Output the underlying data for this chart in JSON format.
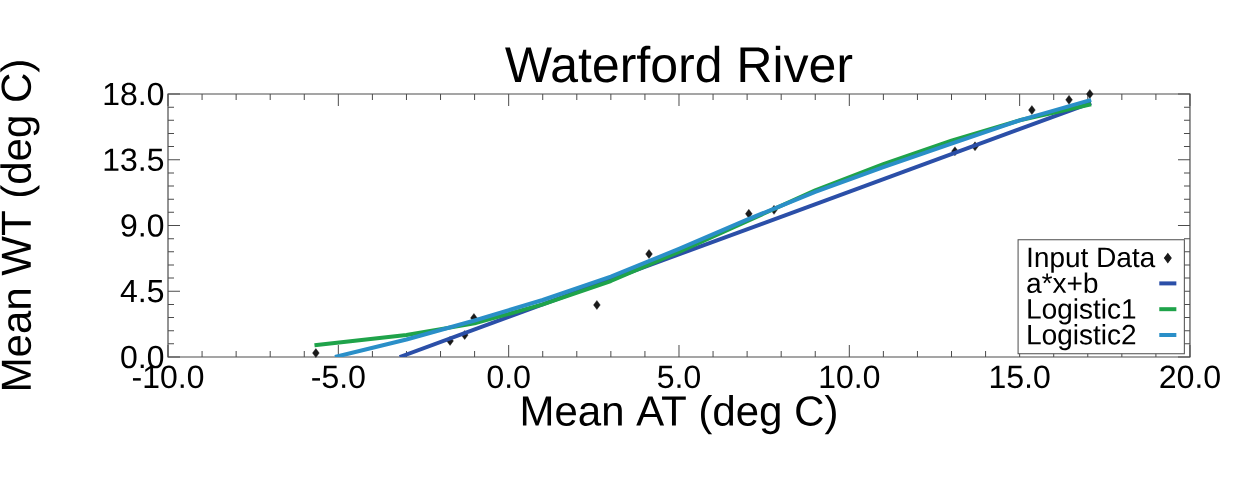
{
  "chart_data": {
    "type": "line",
    "title": "Waterford River",
    "xlabel": "Mean AT (deg C)",
    "ylabel": "Mean WT (deg C)",
    "xlim": [
      -10,
      20
    ],
    "ylim": [
      0,
      18
    ],
    "xticks": [
      {
        "value": -10,
        "label": "-10.0"
      },
      {
        "value": -5,
        "label": "-5.0"
      },
      {
        "value": 0,
        "label": "0.0"
      },
      {
        "value": 5,
        "label": "5.0"
      },
      {
        "value": 10,
        "label": "10.0"
      },
      {
        "value": 15,
        "label": "15.0"
      },
      {
        "value": 20,
        "label": "20.0"
      }
    ],
    "yticks": [
      {
        "value": 0,
        "label": "0.0"
      },
      {
        "value": 4.5,
        "label": "4.5"
      },
      {
        "value": 9,
        "label": "9.0"
      },
      {
        "value": 13.5,
        "label": "13.5"
      },
      {
        "value": 18,
        "label": "18.0"
      }
    ],
    "grid": false,
    "legend": "bottom right",
    "series": [
      {
        "name": "Input Data",
        "type": "scatter",
        "marker": "diamond",
        "color": "#1a1a1a",
        "x": [
          -5.66,
          -1.72,
          -1.29,
          -1.02,
          2.59,
          4.12,
          7.05,
          7.79,
          13.1,
          13.69,
          15.36,
          16.45,
          17.06
        ],
        "values": [
          0.27,
          1.1,
          1.5,
          2.67,
          3.56,
          7.05,
          9.8,
          10.07,
          14.08,
          14.42,
          16.9,
          17.6,
          18.0
        ]
      },
      {
        "name": "a*x+b",
        "type": "line",
        "color": "#2b4fa8",
        "x": [
          -3.2,
          17.1
        ],
        "values": [
          0,
          17.4
        ]
      },
      {
        "name": "Logistic1",
        "type": "line",
        "color": "#1fa34a",
        "x": [
          -5.7,
          -3,
          -1,
          1,
          3,
          5,
          7,
          9,
          11,
          13,
          15,
          17.1
        ],
        "values": [
          0.8,
          1.5,
          2.3,
          3.6,
          5.2,
          7.2,
          9.3,
          11.4,
          13.2,
          14.8,
          16.2,
          17.3
        ]
      },
      {
        "name": "Logistic2",
        "type": "line",
        "color": "#2a8fc8",
        "x": [
          -5.1,
          -3,
          -1,
          1,
          3,
          5,
          7,
          9,
          11,
          13,
          15,
          17.1
        ],
        "values": [
          0,
          1.2,
          2.5,
          3.9,
          5.5,
          7.4,
          9.4,
          11.3,
          13.0,
          14.6,
          16.2,
          17.6
        ]
      }
    ]
  }
}
